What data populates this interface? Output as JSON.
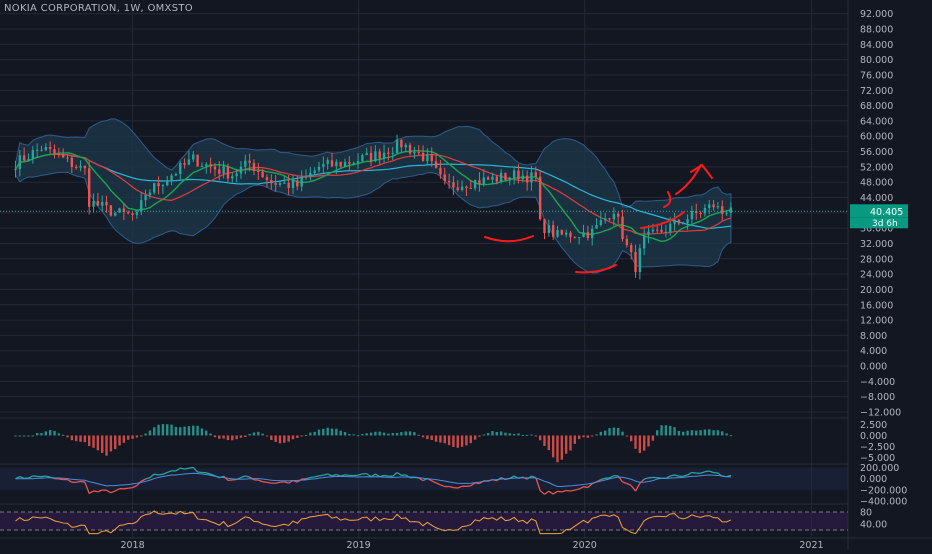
{
  "header": {
    "title": "NOKIA CORPORATION, 1W, OMXSTO"
  },
  "colors": {
    "background": "#131722",
    "grid": "#232838",
    "up": "#26a69a",
    "down": "#ef5350",
    "bollinger_fill": "#1e3a4c",
    "long_ma": "#2bb6d9",
    "red_ma": "#e83a3a",
    "green_ma": "#1aa64e",
    "annotation": "#ff1a1a",
    "price_badge": "#089981",
    "rsi_line": "#f2a33a",
    "rsi_band": "#3b1e5a"
  },
  "price_axis": {
    "ticks": [
      "92.000",
      "88.000",
      "84.000",
      "80.000",
      "76.000",
      "72.000",
      "68.000",
      "64.000",
      "60.000",
      "56.000",
      "52.000",
      "48.000",
      "44.000",
      "40.000",
      "36.000",
      "32.000",
      "28.000",
      "24.000",
      "20.000",
      "16.000",
      "12.000",
      "8.000",
      "4.000",
      "0.000",
      "−4.000",
      "−8.000",
      "−12.000"
    ],
    "last_price": "40.405",
    "countdown": "3d 6h"
  },
  "time_axis": {
    "labels": [
      "2018",
      "2019",
      "2020",
      "2021"
    ]
  },
  "macd_axis": {
    "ticks": [
      "2.500",
      "0.000",
      "−2.500",
      "−5.000"
    ]
  },
  "cci_axis": {
    "ticks": [
      "200.000",
      "0.000",
      "−200.000",
      "−400.000"
    ]
  },
  "rsi_axis": {
    "ticks": [
      "80",
      "40.00"
    ]
  },
  "chart_data": {
    "type": "candlestick",
    "symbol": "NOKIA CORPORATION",
    "interval": "1W",
    "exchange": "OMXSTO",
    "ylim": [
      -12,
      94
    ],
    "x_range": [
      "2017-06",
      "2021-03"
    ],
    "anchors": [
      [
        "2017-06-26",
        53
      ],
      [
        "2017-08-07",
        57
      ],
      [
        "2017-09-11",
        54
      ],
      [
        "2017-10-16",
        51
      ],
      [
        "2017-10-23",
        43
      ],
      [
        "2017-12-04",
        40
      ],
      [
        "2018-01-08",
        39
      ],
      [
        "2018-01-22",
        45
      ],
      [
        "2018-03-05",
        50
      ],
      [
        "2018-04-09",
        54
      ],
      [
        "2018-05-07",
        52
      ],
      [
        "2018-06-11",
        50
      ],
      [
        "2018-07-09",
        53
      ],
      [
        "2018-08-13",
        48
      ],
      [
        "2018-09-24",
        47
      ],
      [
        "2018-10-29",
        52
      ],
      [
        "2018-12-10",
        53
      ],
      [
        "2019-01-28",
        55
      ],
      [
        "2019-03-11",
        58
      ],
      [
        "2019-04-22",
        54
      ],
      [
        "2019-05-20",
        47
      ],
      [
        "2019-07-01",
        48
      ],
      [
        "2019-08-12",
        49
      ],
      [
        "2019-09-16",
        50
      ],
      [
        "2019-10-14",
        49
      ],
      [
        "2019-10-21",
        37
      ],
      [
        "2019-11-18",
        34
      ],
      [
        "2020-01-13",
        35
      ],
      [
        "2020-02-17",
        41
      ],
      [
        "2020-03-09",
        31
      ],
      [
        "2020-03-23",
        26
      ],
      [
        "2020-04-06",
        33
      ],
      [
        "2020-05-25",
        37
      ],
      [
        "2020-07-27",
        42
      ],
      [
        "2020-08-10",
        40
      ],
      [
        "2020-08-24",
        42
      ]
    ],
    "bollinger": {
      "upper_max": 64,
      "lower_min": 26
    },
    "macd": {
      "ylim": [
        -6,
        3.5
      ]
    },
    "cci": {
      "ylim": [
        -420,
        230
      ],
      "levels": [
        200,
        0,
        -200,
        -400
      ]
    },
    "rsi": {
      "ylim": [
        0,
        100
      ],
      "levels": [
        80,
        20
      ]
    },
    "last_price": 40.405,
    "annotations": [
      "arrow-up-prediction",
      "support-smile-curves"
    ]
  }
}
